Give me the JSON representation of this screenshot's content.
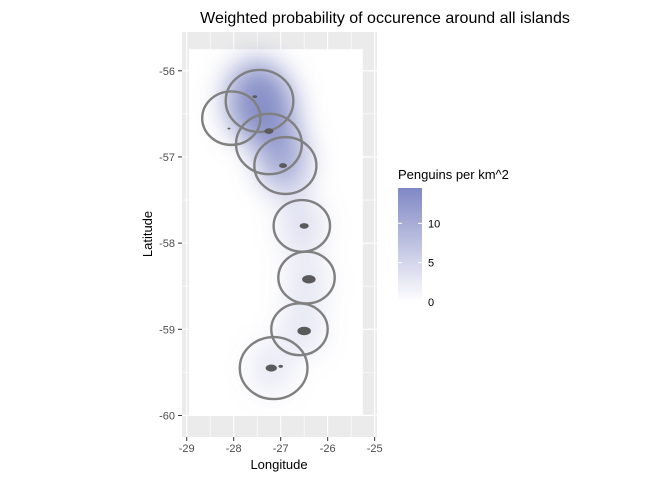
{
  "chart_data": {
    "type": "heatmap",
    "title": "Weighted probability of occurence around all islands",
    "xlabel": "Longitude",
    "ylabel": "Latitude",
    "xlim": [
      -29.1,
      -24.95
    ],
    "ylim": [
      -60.25,
      -55.55
    ],
    "x_ticks": [
      -29,
      -28,
      -27,
      -26,
      -25
    ],
    "y_ticks": [
      -56,
      -57,
      -58,
      -59,
      -60
    ],
    "grid": true,
    "legend": {
      "title": "Penguins per km^2",
      "placement": "right",
      "ticks": [
        0,
        5,
        10
      ],
      "range": [
        0,
        14.5
      ],
      "color_low": "#ffffff",
      "color_high": "#8088c4"
    },
    "colors": {
      "panel": "#ebebeb",
      "gridline": "#ffffff",
      "boundary": "#808080",
      "island": "#5a5a5a"
    },
    "density_peaks": [
      {
        "lon": -27.5,
        "lat": -56.35,
        "value": 14.0
      },
      {
        "lon": -27.25,
        "lat": -56.45,
        "value": 10.0
      },
      {
        "lon": -27.05,
        "lat": -56.85,
        "value": 8.0
      },
      {
        "lon": -26.9,
        "lat": -57.1,
        "value": 7.0
      },
      {
        "lon": -26.55,
        "lat": -57.8,
        "value": 3.0
      },
      {
        "lon": -26.45,
        "lat": -58.45,
        "value": 2.0
      },
      {
        "lon": -26.55,
        "lat": -59.0,
        "value": 2.0
      },
      {
        "lon": -27.2,
        "lat": -59.45,
        "value": 1.5
      }
    ],
    "buffer_circles": [
      {
        "lon": -28.05,
        "lat": -56.55,
        "r": 0.62
      },
      {
        "lon": -27.45,
        "lat": -56.35,
        "r": 0.72
      },
      {
        "lon": -27.25,
        "lat": -56.85,
        "r": 0.7
      },
      {
        "lon": -26.9,
        "lat": -57.1,
        "r": 0.66
      },
      {
        "lon": -26.55,
        "lat": -57.8,
        "r": 0.6
      },
      {
        "lon": -26.45,
        "lat": -58.4,
        "r": 0.6
      },
      {
        "lon": -26.6,
        "lat": -59.0,
        "r": 0.6
      },
      {
        "lon": -27.15,
        "lat": -59.45,
        "r": 0.72
      }
    ],
    "islands": [
      {
        "lon": -27.55,
        "lat": -56.3,
        "size": 0.04
      },
      {
        "lon": -27.25,
        "lat": -56.7,
        "size": 0.08
      },
      {
        "lon": -28.1,
        "lat": -56.67,
        "size": 0.025
      },
      {
        "lon": -26.95,
        "lat": -57.1,
        "size": 0.07
      },
      {
        "lon": -26.5,
        "lat": -57.8,
        "size": 0.08
      },
      {
        "lon": -26.4,
        "lat": -58.42,
        "size": 0.12
      },
      {
        "lon": -26.5,
        "lat": -59.02,
        "size": 0.12
      },
      {
        "lon": -27.2,
        "lat": -59.45,
        "size": 0.1
      },
      {
        "lon": -27.0,
        "lat": -59.43,
        "size": 0.04
      }
    ]
  }
}
